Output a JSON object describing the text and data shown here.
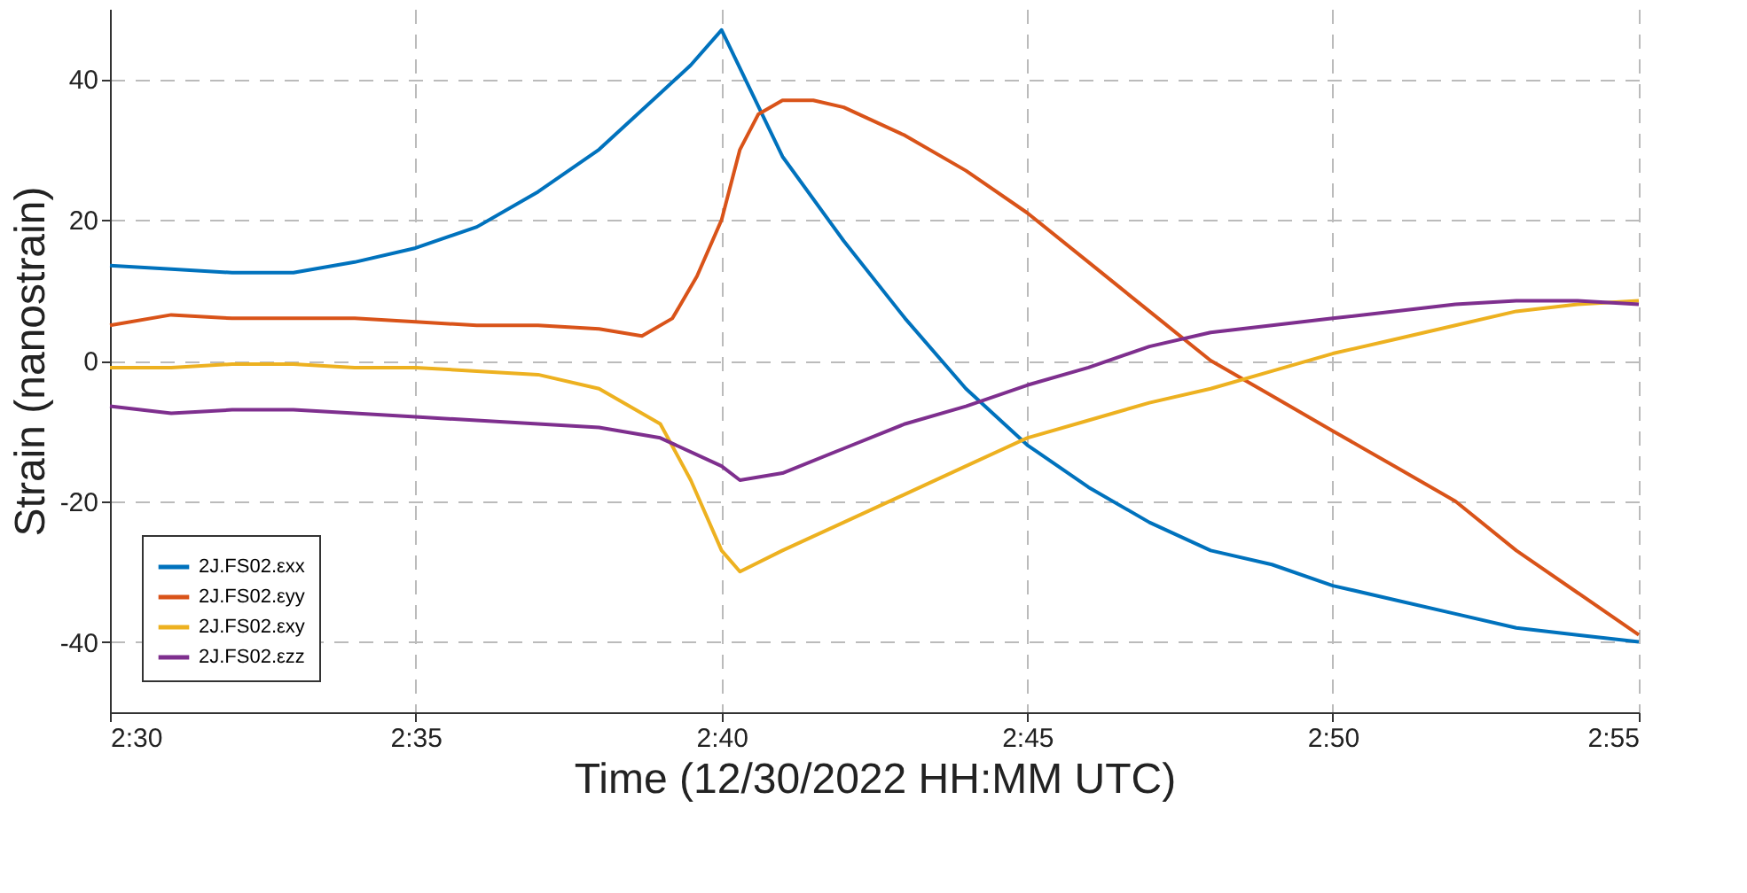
{
  "chart_data": {
    "type": "line",
    "xlabel": "Time (12/30/2022 HH:MM UTC)",
    "ylabel": "Strain (nanostrain)",
    "xlim": [
      2.5,
      2.9167
    ],
    "xticks": [
      {
        "value": 2.5,
        "label": "2:30"
      },
      {
        "value": 2.5833,
        "label": "2:35"
      },
      {
        "value": 2.6667,
        "label": "2:40"
      },
      {
        "value": 2.75,
        "label": "2:45"
      },
      {
        "value": 2.8333,
        "label": "2:50"
      },
      {
        "value": 2.9167,
        "label": "2:55"
      }
    ],
    "ylim": [
      -50,
      50
    ],
    "yticks": [
      -40,
      -20,
      0,
      20,
      40
    ],
    "grid": true,
    "legend": "bottom left",
    "line_style": "solid",
    "marker": "none",
    "series": [
      {
        "name": "2J.FS02.εxx",
        "color": "#0072bd",
        "x": [
          2.5,
          2.5167,
          2.5333,
          2.55,
          2.5667,
          2.5833,
          2.6,
          2.6167,
          2.6333,
          2.65,
          2.6583,
          2.6667,
          2.6833,
          2.7,
          2.7167,
          2.7333,
          2.75,
          2.7667,
          2.7833,
          2.8,
          2.8167,
          2.8333,
          2.85,
          2.8667,
          2.8833,
          2.9,
          2.9167
        ],
        "values": [
          13.5,
          13,
          12.5,
          12.5,
          14,
          16,
          19,
          24,
          30,
          38,
          42,
          47,
          29,
          17,
          6,
          -4,
          -12,
          -18,
          -23,
          -27,
          -29,
          -32,
          -34,
          -36,
          -38,
          -39,
          -40
        ]
      },
      {
        "name": "2J.FS02.εyy",
        "color": "#d95319",
        "x": [
          2.5,
          2.5167,
          2.5333,
          2.55,
          2.5667,
          2.5833,
          2.6,
          2.6167,
          2.6333,
          2.645,
          2.6533,
          2.66,
          2.6667,
          2.6717,
          2.6767,
          2.6833,
          2.6917,
          2.7,
          2.7167,
          2.7333,
          2.75,
          2.7667,
          2.7833,
          2.8,
          2.8167,
          2.8333,
          2.85,
          2.8667,
          2.8833,
          2.9,
          2.9167
        ],
        "values": [
          5,
          6.5,
          6,
          6,
          6,
          5.5,
          5,
          5,
          4.5,
          3.5,
          6,
          12,
          20,
          30,
          35,
          37,
          37,
          36,
          32,
          27,
          21,
          14,
          7,
          0,
          -5,
          -10,
          -15,
          -20,
          -27,
          -33,
          -39
        ]
      },
      {
        "name": "2J.FS02.εxy",
        "color": "#edb120",
        "x": [
          2.5,
          2.5167,
          2.5333,
          2.55,
          2.5667,
          2.5833,
          2.6,
          2.6167,
          2.6333,
          2.65,
          2.6583,
          2.6667,
          2.6717,
          2.6833,
          2.7,
          2.7167,
          2.7333,
          2.75,
          2.7667,
          2.7833,
          2.8,
          2.8167,
          2.8333,
          2.85,
          2.8667,
          2.8833,
          2.9,
          2.9167
        ],
        "values": [
          -1,
          -1,
          -0.5,
          -0.5,
          -1,
          -1,
          -1.5,
          -2,
          -4,
          -9,
          -17,
          -27,
          -30,
          -27,
          -23,
          -19,
          -15,
          -11,
          -8.5,
          -6,
          -4,
          -1.5,
          1,
          3,
          5,
          7,
          8,
          8.5
        ]
      },
      {
        "name": "2J.FS02.εzz",
        "color": "#7e2f8e",
        "x": [
          2.5,
          2.5167,
          2.5333,
          2.55,
          2.5667,
          2.5833,
          2.6,
          2.6167,
          2.6333,
          2.65,
          2.6667,
          2.6717,
          2.6833,
          2.7,
          2.7167,
          2.7333,
          2.75,
          2.7667,
          2.7833,
          2.8,
          2.8167,
          2.8333,
          2.85,
          2.8667,
          2.8833,
          2.9,
          2.9167
        ],
        "values": [
          -6.5,
          -7.5,
          -7,
          -7,
          -7.5,
          -8,
          -8.5,
          -9,
          -9.5,
          -11,
          -15,
          -17,
          -16,
          -12.5,
          -9,
          -6.5,
          -3.5,
          -1,
          2,
          4,
          5,
          6,
          7,
          8,
          8.5,
          8.5,
          8
        ]
      }
    ]
  }
}
